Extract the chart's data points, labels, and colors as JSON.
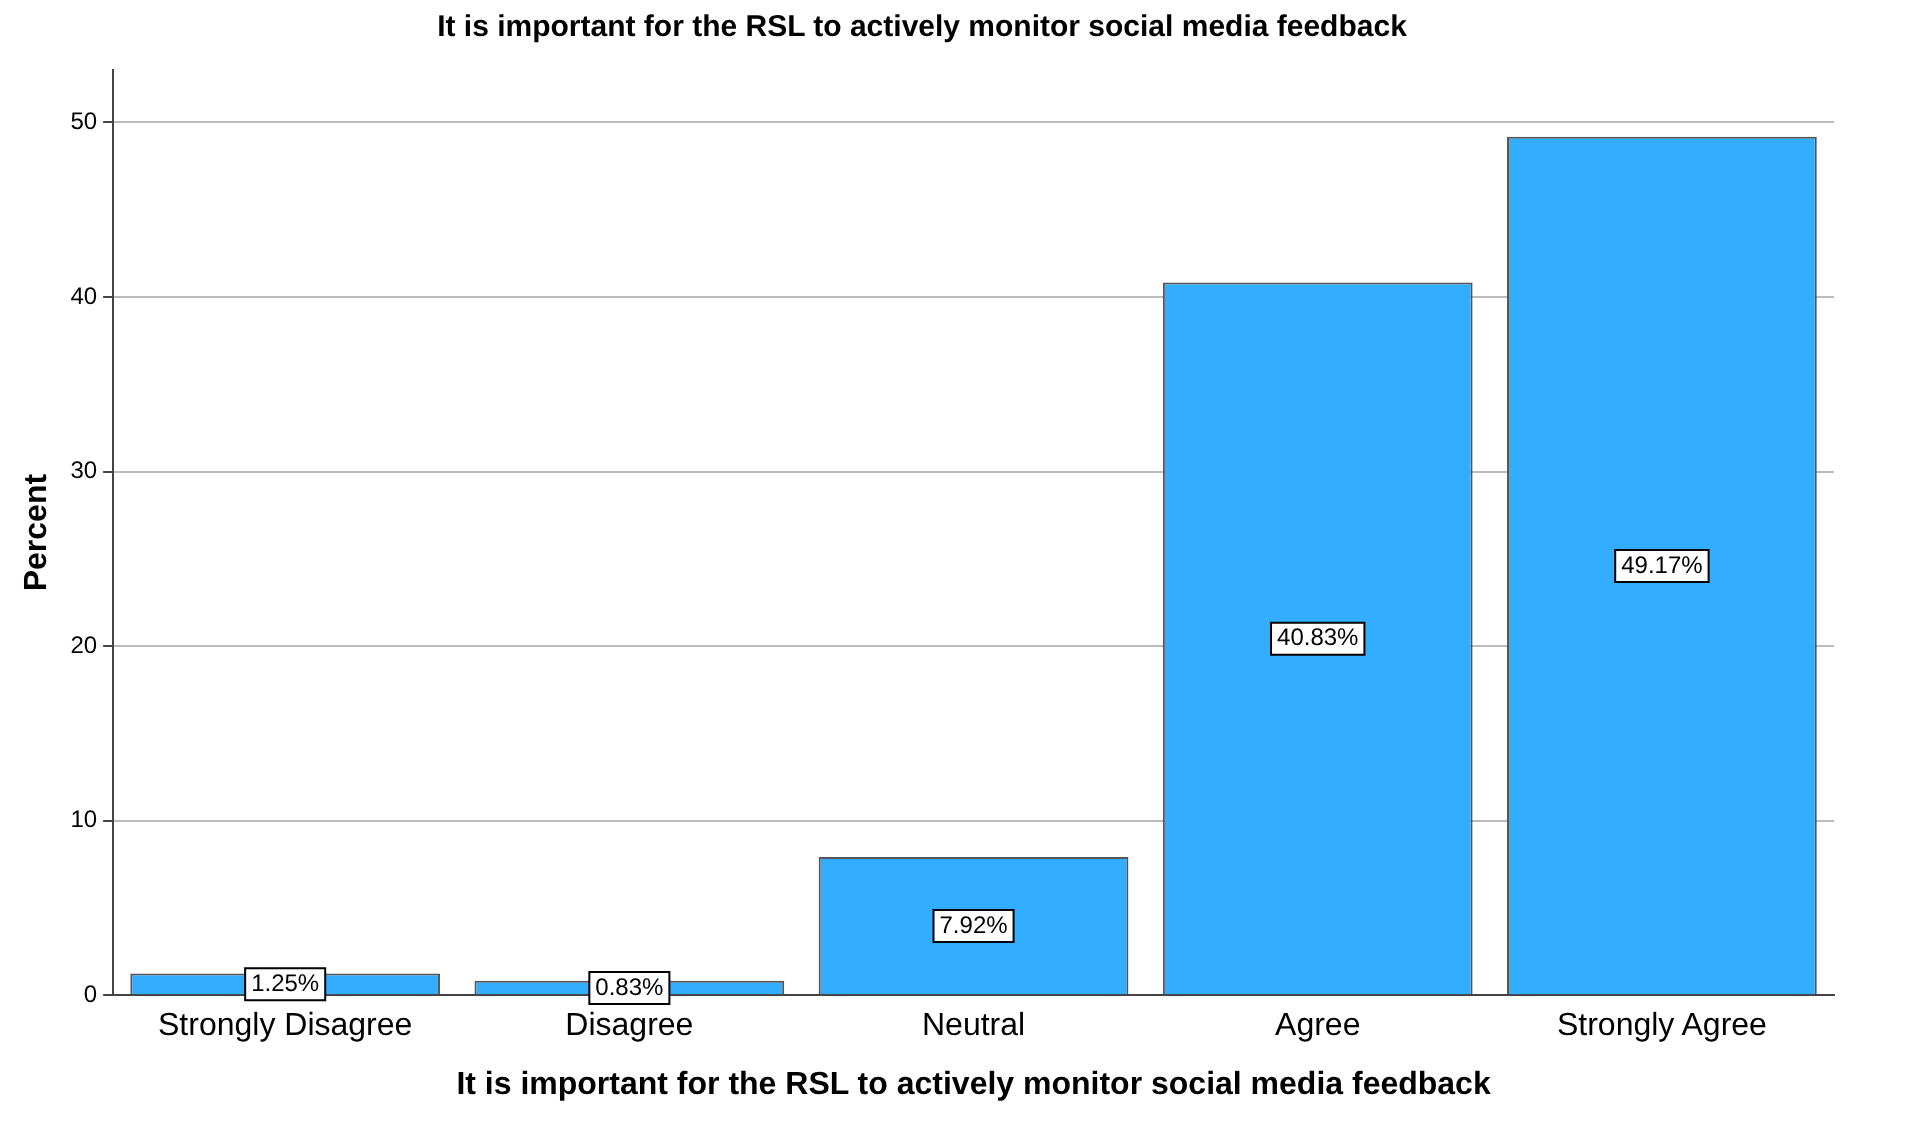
{
  "chart_data": {
    "type": "bar",
    "title": "It is important for the RSL to actively monitor social media feedback",
    "xlabel": "It is important for the RSL to actively monitor social media feedback",
    "ylabel": "Percent",
    "categories": [
      "Strongly Disagree",
      "Disagree",
      "Neutral",
      "Agree",
      "Strongly Agree"
    ],
    "values": [
      1.25,
      0.83,
      7.92,
      40.83,
      49.17
    ],
    "value_labels": [
      "1.25%",
      "0.83%",
      "7.92%",
      "40.83%",
      "49.17%"
    ],
    "color": "#33adff",
    "ylim": [
      0,
      53
    ],
    "yticks": [
      0,
      10,
      20,
      30,
      40,
      50
    ],
    "grid": "y"
  }
}
